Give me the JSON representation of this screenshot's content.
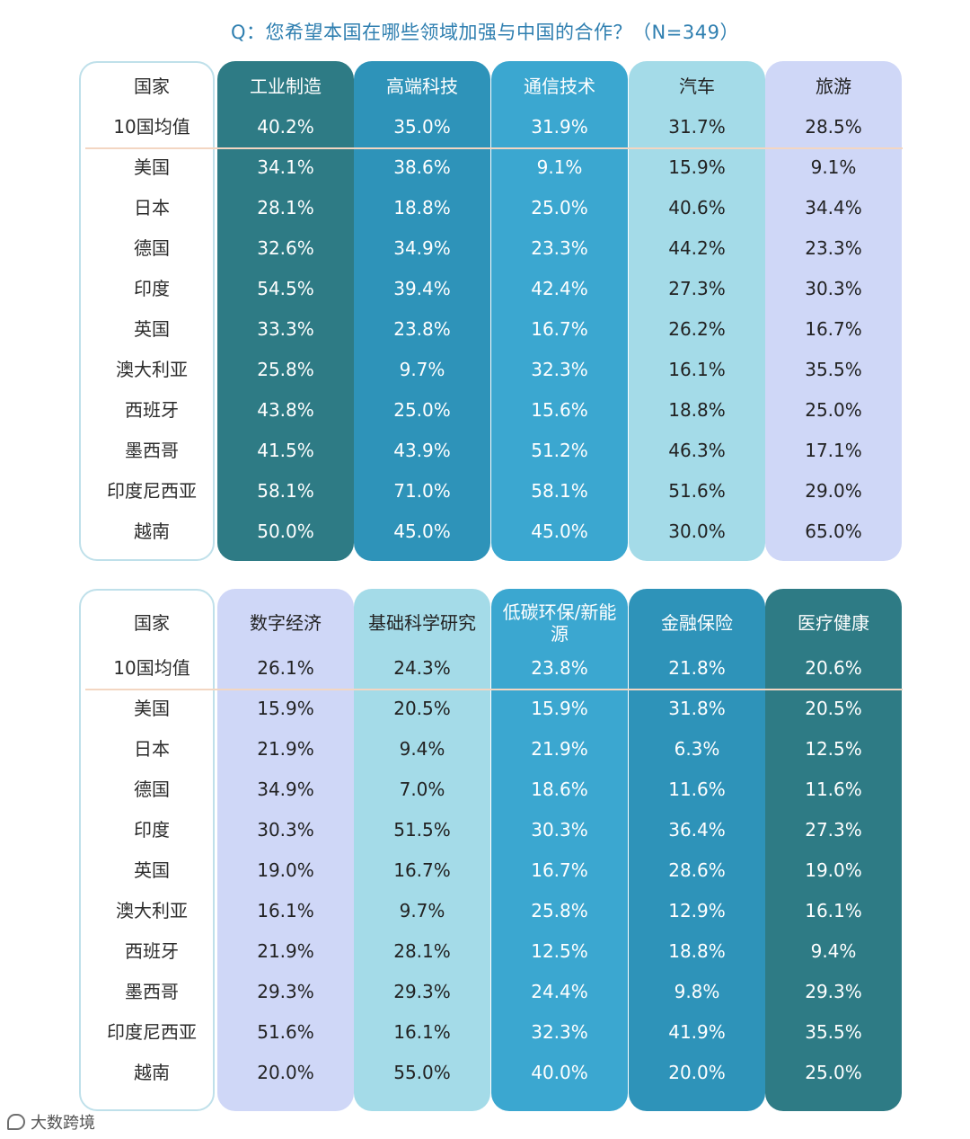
{
  "title": "Q：您希望本国在哪些领域加强与中国的合作？（N=349）",
  "watermark": {
    "label": "大数跨境"
  },
  "colors": {
    "t1": [
      "#2e7b85",
      "#2e93b9",
      "#3ba7d0",
      "#a4dbe8",
      "#cfd7f7"
    ],
    "t2": [
      "#cfd7f7",
      "#a4dbe8",
      "#3ba7d0",
      "#2e93b9",
      "#2e7b85"
    ],
    "t1_text": [
      "#ffffff",
      "#ffffff",
      "#ffffff",
      "#222222",
      "#222222"
    ],
    "t2_text": [
      "#222222",
      "#222222",
      "#ffffff",
      "#ffffff",
      "#ffffff"
    ]
  },
  "chart_data": [
    {
      "type": "table",
      "corner_label": "国家",
      "columns": [
        "工业制造",
        "高端科技",
        "通信技术",
        "汽车",
        "旅游"
      ],
      "average_label": "10国均值",
      "average": [
        "40.2%",
        "35.0%",
        "31.9%",
        "31.7%",
        "28.5%"
      ],
      "rows": [
        {
          "country": "美国",
          "values": [
            "34.1%",
            "38.6%",
            "9.1%",
            "15.9%",
            "9.1%"
          ]
        },
        {
          "country": "日本",
          "values": [
            "28.1%",
            "18.8%",
            "25.0%",
            "40.6%",
            "34.4%"
          ]
        },
        {
          "country": "德国",
          "values": [
            "32.6%",
            "34.9%",
            "23.3%",
            "44.2%",
            "23.3%"
          ]
        },
        {
          "country": "印度",
          "values": [
            "54.5%",
            "39.4%",
            "42.4%",
            "27.3%",
            "30.3%"
          ]
        },
        {
          "country": "英国",
          "values": [
            "33.3%",
            "23.8%",
            "16.7%",
            "26.2%",
            "16.7%"
          ]
        },
        {
          "country": "澳大利亚",
          "values": [
            "25.8%",
            "9.7%",
            "32.3%",
            "16.1%",
            "35.5%"
          ]
        },
        {
          "country": "西班牙",
          "values": [
            "43.8%",
            "25.0%",
            "15.6%",
            "18.8%",
            "25.0%"
          ]
        },
        {
          "country": "墨西哥",
          "values": [
            "41.5%",
            "43.9%",
            "51.2%",
            "46.3%",
            "17.1%"
          ]
        },
        {
          "country": "印度尼西亚",
          "values": [
            "58.1%",
            "71.0%",
            "58.1%",
            "51.6%",
            "29.0%"
          ]
        },
        {
          "country": "越南",
          "values": [
            "50.0%",
            "45.0%",
            "45.0%",
            "30.0%",
            "65.0%"
          ]
        }
      ]
    },
    {
      "type": "table",
      "corner_label": "国家",
      "columns": [
        "数字经济",
        "基础科学研究",
        "低碳环保/新能源",
        "金融保险",
        "医疗健康"
      ],
      "average_label": "10国均值",
      "average": [
        "26.1%",
        "24.3%",
        "23.8%",
        "21.8%",
        "20.6%"
      ],
      "rows": [
        {
          "country": "美国",
          "values": [
            "15.9%",
            "20.5%",
            "15.9%",
            "31.8%",
            "20.5%"
          ]
        },
        {
          "country": "日本",
          "values": [
            "21.9%",
            "9.4%",
            "21.9%",
            "6.3%",
            "12.5%"
          ]
        },
        {
          "country": "德国",
          "values": [
            "34.9%",
            "7.0%",
            "18.6%",
            "11.6%",
            "11.6%"
          ]
        },
        {
          "country": "印度",
          "values": [
            "30.3%",
            "51.5%",
            "30.3%",
            "36.4%",
            "27.3%"
          ]
        },
        {
          "country": "英国",
          "values": [
            "19.0%",
            "16.7%",
            "16.7%",
            "28.6%",
            "19.0%"
          ]
        },
        {
          "country": "澳大利亚",
          "values": [
            "16.1%",
            "9.7%",
            "25.8%",
            "12.9%",
            "16.1%"
          ]
        },
        {
          "country": "西班牙",
          "values": [
            "21.9%",
            "28.1%",
            "12.5%",
            "18.8%",
            "9.4%"
          ]
        },
        {
          "country": "墨西哥",
          "values": [
            "29.3%",
            "29.3%",
            "24.4%",
            "9.8%",
            "29.3%"
          ]
        },
        {
          "country": "印度尼西亚",
          "values": [
            "51.6%",
            "16.1%",
            "32.3%",
            "41.9%",
            "35.5%"
          ]
        },
        {
          "country": "越南",
          "values": [
            "20.0%",
            "55.0%",
            "40.0%",
            "20.0%",
            "25.0%"
          ]
        }
      ]
    }
  ]
}
